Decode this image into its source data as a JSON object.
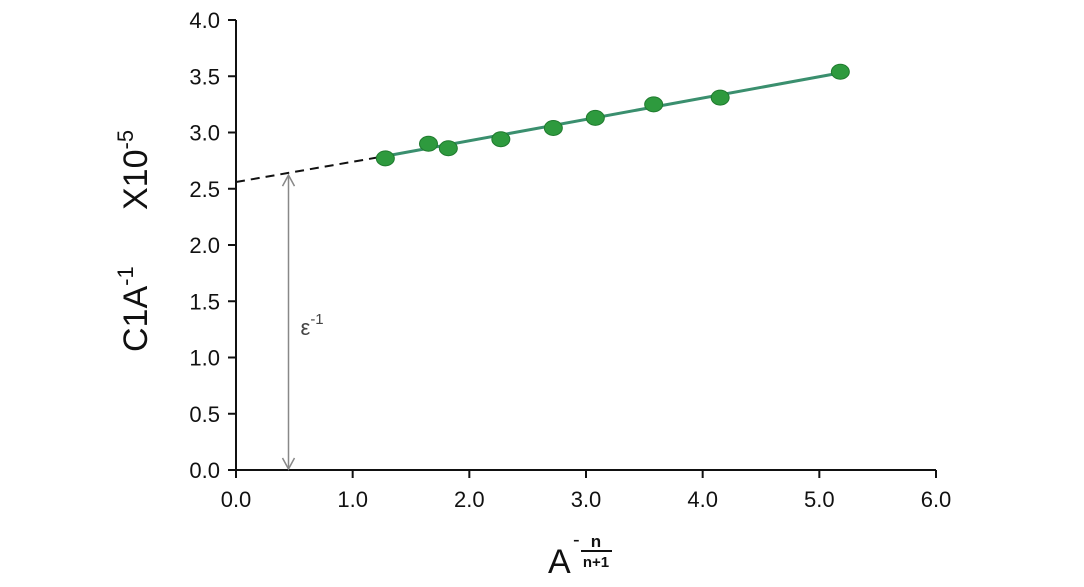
{
  "chart_data": {
    "type": "scatter",
    "title": "",
    "xlim": [
      0.0,
      6.0
    ],
    "ylim": [
      0.0,
      4.0
    ],
    "x_ticks": [
      "0.0",
      "1.0",
      "2.0",
      "3.0",
      "4.0",
      "5.0",
      "6.0"
    ],
    "y_ticks": [
      "0.0",
      "0.5",
      "1.0",
      "1.5",
      "2.0",
      "2.5",
      "3.0",
      "3.5",
      "4.0"
    ],
    "xlabel": {
      "base": "A",
      "exponent_sign": "-",
      "exponent_numerator": "n",
      "exponent_denominator": "n+1"
    },
    "ylabel": {
      "base": "C1A",
      "base_sup": "-1",
      "multiplier": "X10",
      "multiplier_sup": "-5"
    },
    "grid": false,
    "legend": "none",
    "series": [
      {
        "color": "#2e9a3e",
        "points": [
          {
            "x": 1.28,
            "y": 2.77
          },
          {
            "x": 1.65,
            "y": 2.9
          },
          {
            "x": 1.82,
            "y": 2.86
          },
          {
            "x": 2.27,
            "y": 2.94
          },
          {
            "x": 2.72,
            "y": 3.04
          },
          {
            "x": 3.08,
            "y": 3.13
          },
          {
            "x": 3.58,
            "y": 3.25
          },
          {
            "x": 4.15,
            "y": 3.31
          },
          {
            "x": 5.18,
            "y": 3.54
          }
        ]
      }
    ],
    "fit_line": {
      "color": "#3a8f6e",
      "from": {
        "x": 1.28,
        "y": 2.79
      },
      "to": {
        "x": 5.18,
        "y": 3.53
      }
    },
    "extrapolation_line": {
      "color": "#111111",
      "style": "dashed",
      "from": {
        "x": 0.0,
        "y": 2.56
      },
      "to": {
        "x": 1.28,
        "y": 2.79
      }
    },
    "annotation": {
      "text": "ε",
      "sup": "-1",
      "arrow_x": 0.45,
      "arrow_from_y": 0.0,
      "arrow_to_y": 2.63,
      "arrow_color": "#888888"
    }
  }
}
